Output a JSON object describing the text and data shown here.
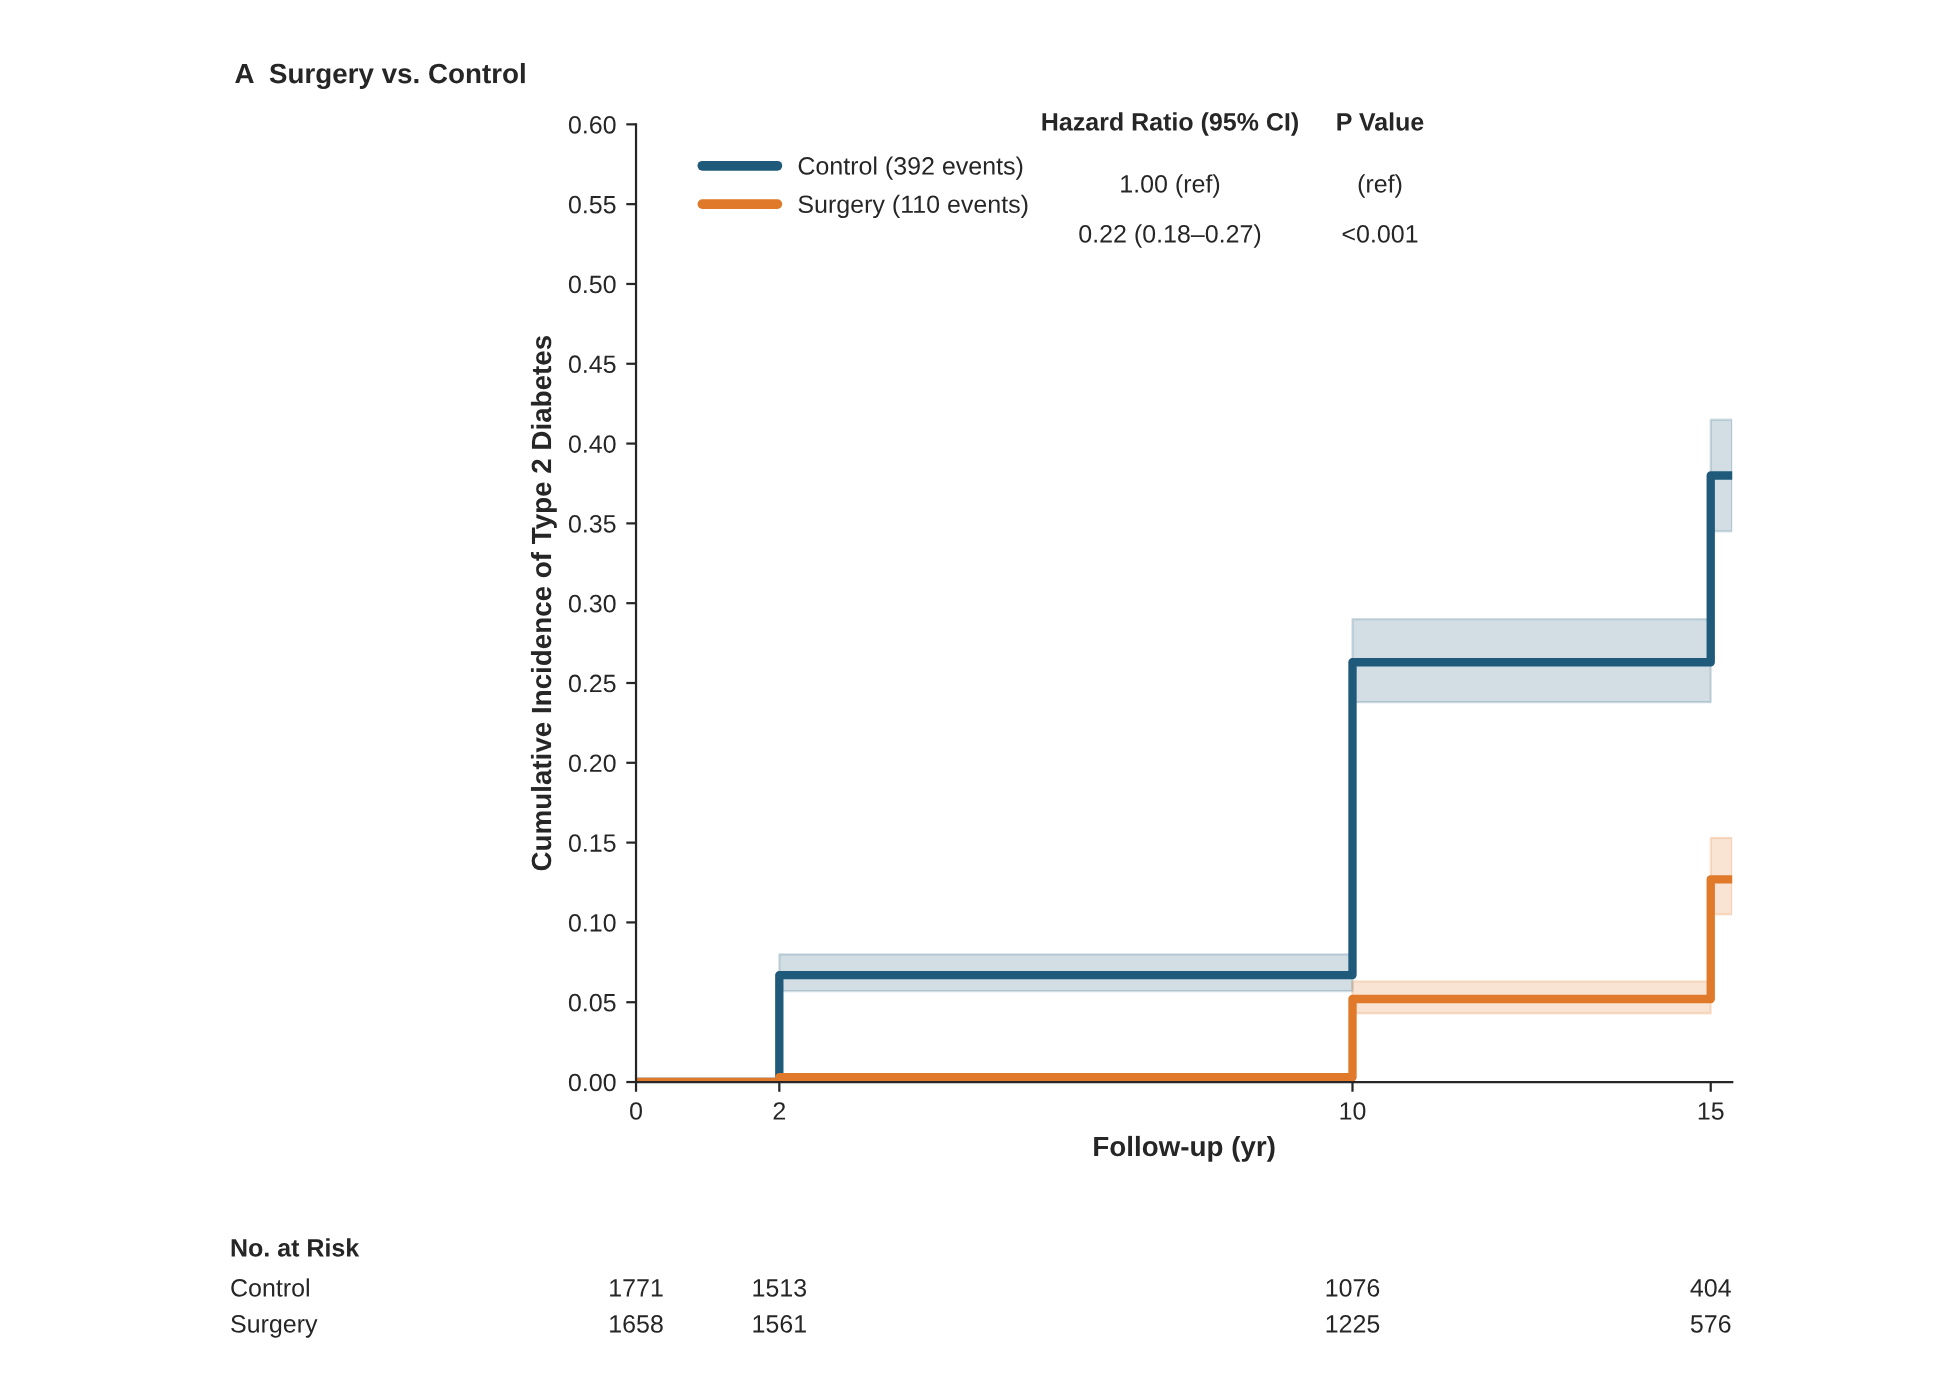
{
  "chart_data": {
    "type": "step",
    "title": "A  Surgery vs. Control",
    "xlabel": "Follow-up (yr)",
    "ylabel": "Cumulative Incidence of Type 2 Diabetes",
    "xlim": [
      0,
      15.3
    ],
    "xticks": [
      0,
      2,
      10,
      15
    ],
    "ylim": [
      0,
      0.6
    ],
    "yticks": [
      {
        "value": 0,
        "label": "0.00"
      },
      {
        "value": 0.05,
        "label": "0.05"
      },
      {
        "value": 0.1,
        "label": "0.10"
      },
      {
        "value": 0.15,
        "label": "0.15"
      },
      {
        "value": 0.2,
        "label": "0.20"
      },
      {
        "value": 0.25,
        "label": "0.25"
      },
      {
        "value": 0.3,
        "label": "0.30"
      },
      {
        "value": 0.35,
        "label": "0.35"
      },
      {
        "value": 0.4,
        "label": "0.40"
      },
      {
        "value": 0.45,
        "label": "0.45"
      },
      {
        "value": 0.5,
        "label": "0.50"
      },
      {
        "value": 0.55,
        "label": "0.55"
      },
      {
        "value": 0.6,
        "label": "0.60"
      }
    ],
    "x": [
      0,
      2,
      10,
      15,
      15.3
    ],
    "series": [
      {
        "name": "Control (392 events)",
        "color": "#1f5a7a",
        "values": [
          0,
          0.067,
          0.263,
          0.38,
          0.38
        ],
        "lower": [
          null,
          0.057,
          0.238,
          0.345,
          0.345
        ],
        "upper": [
          null,
          0.08,
          0.29,
          0.415,
          0.415
        ]
      },
      {
        "name": "Surgery (110 events)",
        "color": "#e07a2a",
        "values": [
          0,
          0.003,
          0.052,
          0.127,
          0.127
        ],
        "lower": [
          null,
          null,
          0.043,
          0.105,
          0.105
        ],
        "upper": [
          null,
          null,
          0.063,
          0.153,
          0.153
        ]
      }
    ],
    "legend": "top left",
    "grid": false,
    "annotations": [
      "Hazard Ratio (95% CI)",
      "P Value",
      "1.00 (ref)",
      "(ref)",
      "0.22 (0.18–0.27)",
      "<0.001",
      "No. at Risk",
      "Control",
      "Surgery",
      "1771",
      "1513",
      "1076",
      "404",
      "1658",
      "1561",
      "1225",
      "576"
    ]
  }
}
